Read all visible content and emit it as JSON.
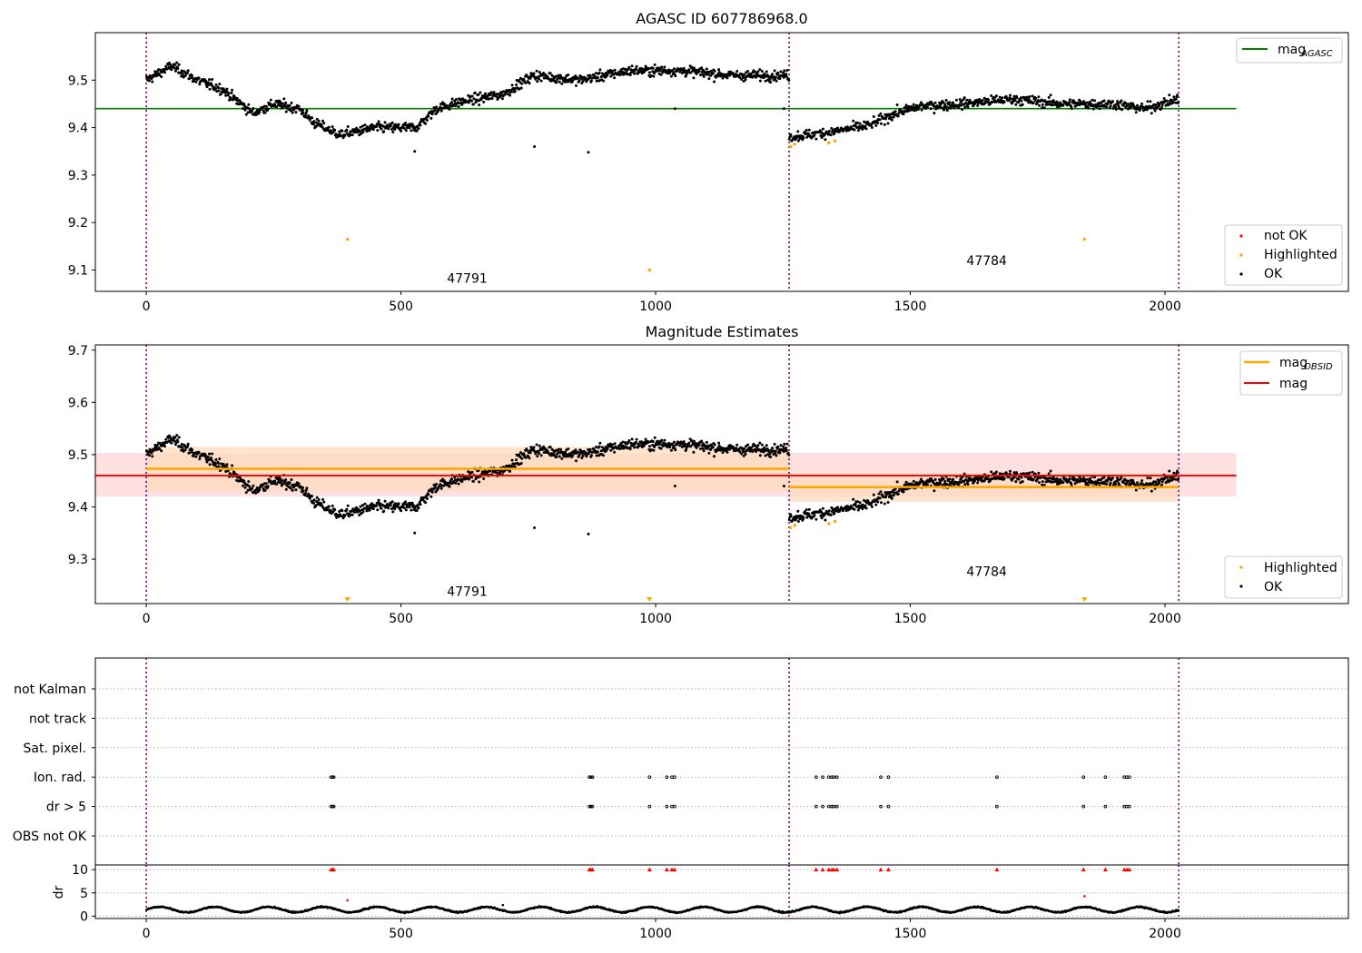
{
  "figure": {
    "title_top": "AGASC ID 607786968.0",
    "title_mid": "Magnitude Estimates"
  },
  "colors": {
    "ok": "#000000",
    "not_ok": "#ff0000",
    "highlighted": "#ffa500",
    "mag_agasc": "#008000",
    "mag_obsid": "#ffa500",
    "mag": "#ff0000",
    "obs_boundary": "#800080",
    "band_obsid": "#ffdab9",
    "band_mag": "#ffcccc"
  },
  "obsids": [
    {
      "id": "47791",
      "start": 0,
      "end": 1262
    },
    {
      "id": "47784",
      "start": 1262,
      "end": 2027
    }
  ],
  "legend_top": {
    "line": {
      "label": "mag",
      "sub": "AGASC"
    },
    "markers": [
      "not OK",
      "Highlighted",
      "OK"
    ]
  },
  "legend_mid": {
    "lines": [
      {
        "label": "mag",
        "sub": "OBSID"
      },
      {
        "label": "mag",
        "sub": ""
      }
    ],
    "markers": [
      "Highlighted",
      "OK"
    ]
  },
  "chart_data": [
    {
      "type": "scatter",
      "title": "AGASC ID 607786968.0",
      "xlim": [
        -100,
        2360
      ],
      "ylim": [
        9.055,
        9.6
      ],
      "x_ticks": [
        "0",
        "500",
        "1000",
        "1500",
        "2000"
      ],
      "y_ticks": [
        "9.1",
        "9.2",
        "9.3",
        "9.4",
        "9.5"
      ],
      "mag_agasc": 9.44,
      "mag_agasc_xrange": [
        -100,
        2140
      ],
      "obsid_labels": [
        {
          "text": "47791",
          "x": 630,
          "y": 9.073
        },
        {
          "text": "47784",
          "x": 1650,
          "y": 9.11
        }
      ],
      "ok_series": {
        "name": "OK",
        "segments": [
          {
            "x_start": 0,
            "x_end": 1262,
            "anchors": [
              [
                0,
                9.5
              ],
              [
                50,
                9.53
              ],
              [
                100,
                9.5
              ],
              [
                150,
                9.48
              ],
              [
                210,
                9.43
              ],
              [
                250,
                9.45
              ],
              [
                300,
                9.44
              ],
              [
                330,
                9.41
              ],
              [
                380,
                9.385
              ],
              [
                450,
                9.4
              ],
              [
                530,
                9.4
              ],
              [
                570,
                9.44
              ],
              [
                620,
                9.455
              ],
              [
                700,
                9.47
              ],
              [
                760,
                9.51
              ],
              [
                850,
                9.5
              ],
              [
                950,
                9.52
              ],
              [
                1050,
                9.52
              ],
              [
                1150,
                9.51
              ],
              [
                1262,
                9.51
              ]
            ]
          },
          {
            "x_start": 1262,
            "x_end": 2027,
            "anchors": [
              [
                1262,
                9.38
              ],
              [
                1340,
                9.39
              ],
              [
                1420,
                9.405
              ],
              [
                1470,
                9.43
              ],
              [
                1520,
                9.445
              ],
              [
                1600,
                9.45
              ],
              [
                1700,
                9.46
              ],
              [
                1800,
                9.45
              ],
              [
                1900,
                9.45
              ],
              [
                1960,
                9.44
              ],
              [
                2027,
                9.46
              ]
            ]
          }
        ],
        "outliers": [
          [
            762,
            9.36
          ],
          [
            868,
            9.348
          ],
          [
            527,
            9.35
          ],
          [
            1038,
            9.44
          ],
          [
            1252,
            9.44
          ]
        ]
      },
      "highlighted_series": {
        "name": "Highlighted",
        "points": [
          [
            395,
            9.165
          ],
          [
            988,
            9.1
          ],
          [
            1842,
            9.165
          ],
          [
            1265,
            9.36
          ],
          [
            1273,
            9.365
          ],
          [
            1340,
            9.368
          ],
          [
            1352,
            9.372
          ]
        ]
      }
    },
    {
      "type": "scatter",
      "title": "Magnitude Estimates",
      "xlim": [
        -100,
        2360
      ],
      "ylim": [
        9.215,
        9.71
      ],
      "x_ticks": [
        "0",
        "500",
        "1000",
        "1500",
        "2000"
      ],
      "y_ticks": [
        "9.3",
        "9.4",
        "9.5",
        "9.6",
        "9.7"
      ],
      "mag": 9.46,
      "mag_band": [
        9.42,
        9.503
      ],
      "mag_xrange": [
        -100,
        2140
      ],
      "mag_obsid": [
        {
          "x_start": 0,
          "x_end": 1262,
          "value": 9.473,
          "band": [
            9.43,
            9.515
          ]
        },
        {
          "x_start": 1262,
          "x_end": 2027,
          "value": 9.438,
          "band": [
            9.41,
            9.465
          ]
        }
      ],
      "obsid_labels": [
        {
          "text": "47791",
          "x": 630,
          "y": 9.23
        },
        {
          "text": "47784",
          "x": 1650,
          "y": 9.268
        }
      ],
      "highlighted_offscale_x": [
        395,
        988,
        1842
      ],
      "highlighted_points": [
        [
          1265,
          9.36
        ],
        [
          1273,
          9.365
        ],
        [
          1340,
          9.368
        ],
        [
          1352,
          9.372
        ]
      ]
    },
    {
      "type": "scatter",
      "title": "",
      "xlim": [
        -100,
        2360
      ],
      "x_ticks": [
        "0",
        "500",
        "1000",
        "1500",
        "2000"
      ],
      "flag_rows": [
        "not Kalman",
        "not track",
        "Sat. pixel.",
        "Ion. rad.",
        "dr > 5",
        "OBS not OK"
      ],
      "flag_events_x": {
        "Ion. rad.": [
          363,
          366,
          368,
          870,
          873,
          876,
          988,
          1022,
          1032,
          1037,
          1315,
          1328,
          1340,
          1346,
          1350,
          1356,
          1442,
          1457,
          1670,
          1840,
          1883,
          1920,
          1925,
          1930
        ],
        "dr > 5": [
          363,
          366,
          368,
          870,
          873,
          876,
          988,
          1022,
          1032,
          1037,
          1315,
          1328,
          1340,
          1346,
          1350,
          1356,
          1442,
          1457,
          1670,
          1840,
          1883,
          1920,
          1925,
          1930
        ]
      },
      "dr_ylabel": "dr",
      "dr_ylim": [
        -0.5,
        11
      ],
      "dr_ticks": [
        "0",
        "5",
        "10"
      ],
      "dr_clipped_x": [
        363,
        366,
        368,
        870,
        873,
        876,
        988,
        1022,
        1032,
        1037,
        1315,
        1328,
        1340,
        1346,
        1350,
        1356,
        1442,
        1457,
        1670,
        1840,
        1883,
        1920,
        1925,
        1930
      ],
      "dr_spikes": [
        [
          395,
          3.4
        ],
        [
          700,
          2.4
        ],
        [
          1842,
          4.3
        ]
      ],
      "dr_baseline_range": [
        0.2,
        2.0
      ]
    }
  ]
}
